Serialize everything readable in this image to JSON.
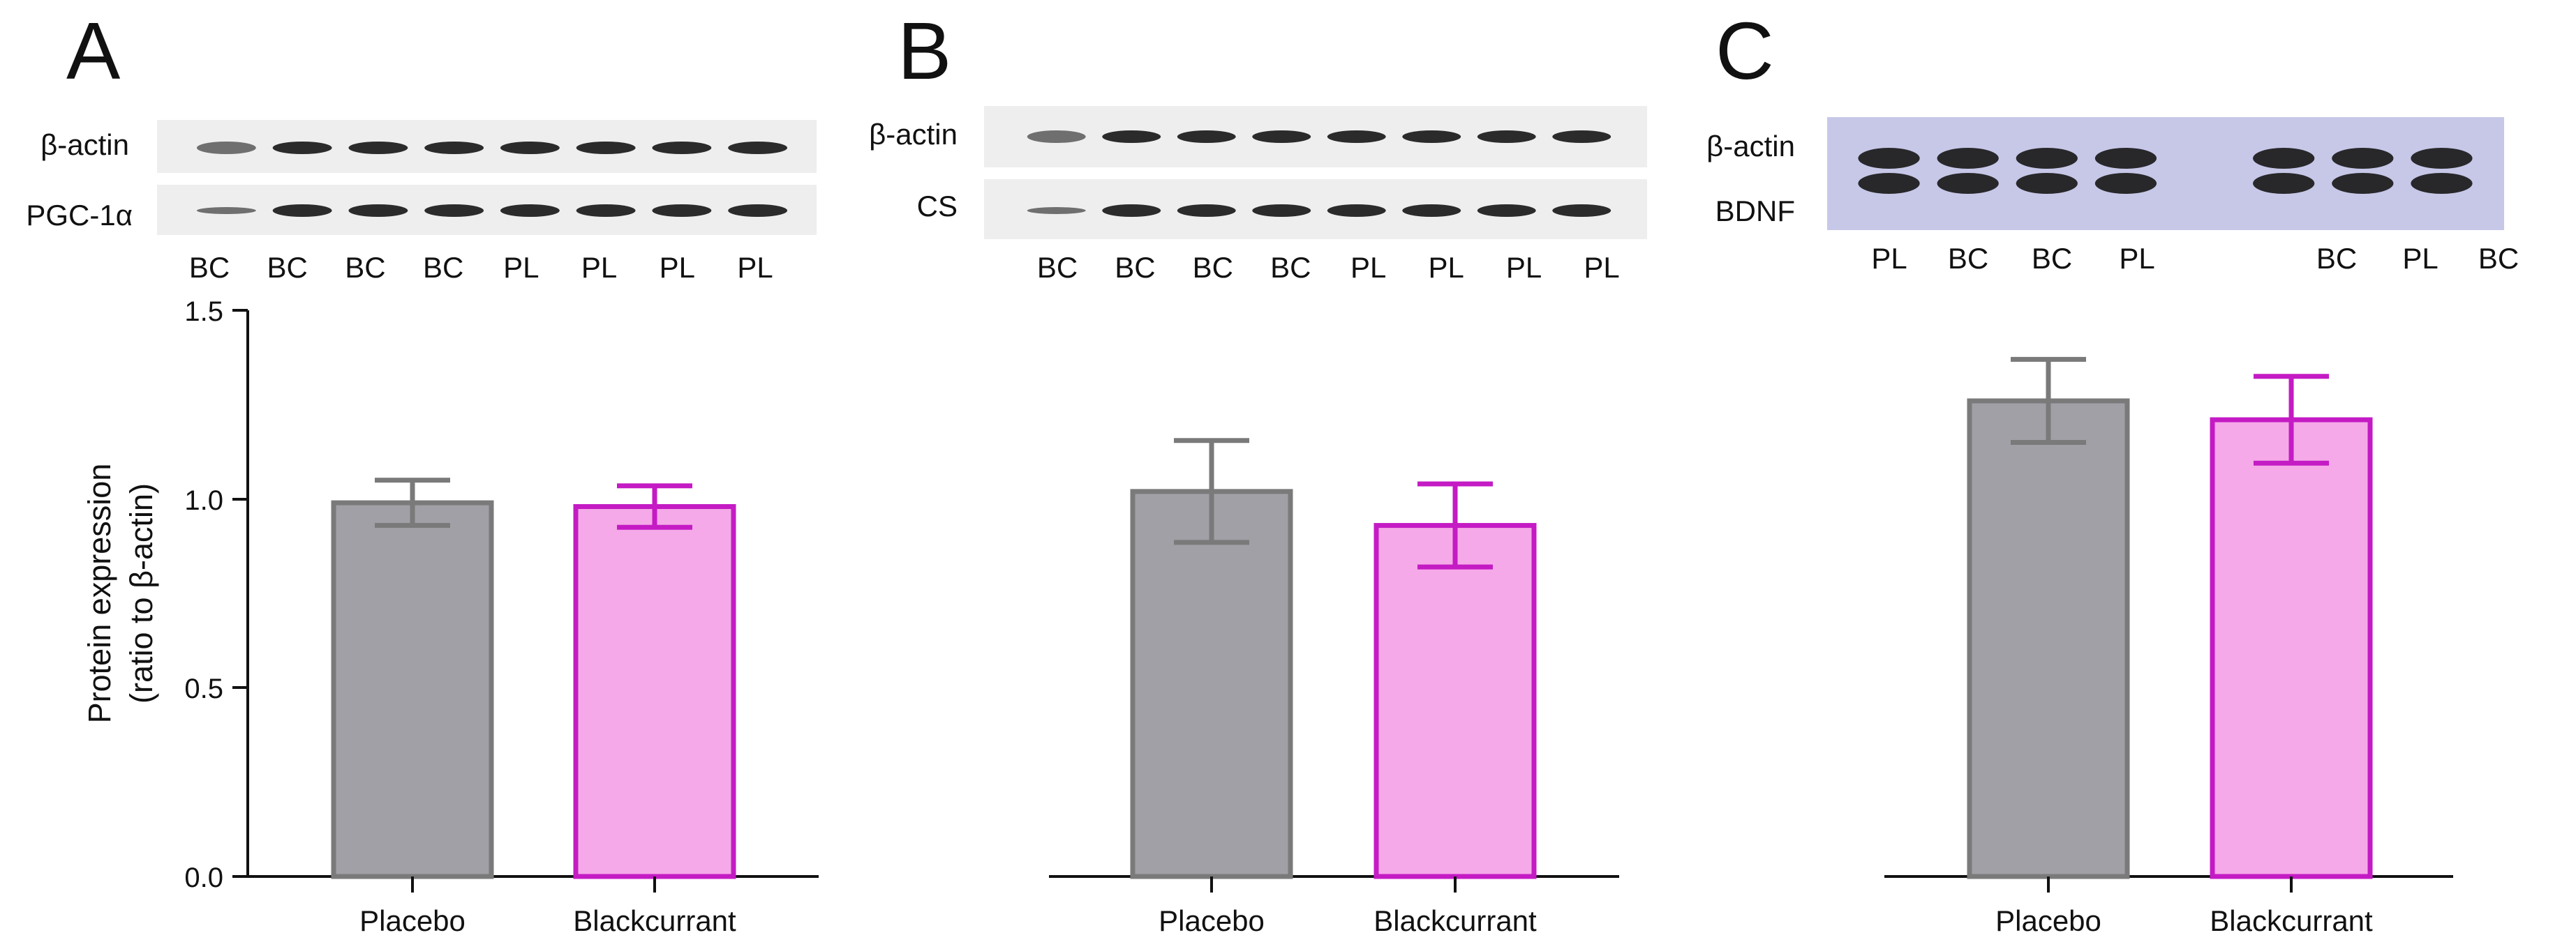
{
  "colors": {
    "placebo_fill": "#a0a0a6",
    "placebo_stroke": "#7a7a7a",
    "blackcurrant_fill": "#f5a9e8",
    "blackcurrant_stroke": "#c41bc4",
    "axis": "#111111",
    "blot_background": "#eeeeee",
    "blot_background_c": "#c7c8e8",
    "band": "#1a1a1a"
  },
  "chart_data": [
    {
      "type": "bar",
      "panel_label": "A",
      "categories": [
        "Placebo",
        "Blackcurrant"
      ],
      "values": [
        0.99,
        0.98
      ],
      "error": [
        0.06,
        0.055
      ],
      "ylabel": "Protein expression",
      "ylabel_sub": "(ratio to β-actin)",
      "ylim": [
        0,
        1.5
      ],
      "yticks": [
        "0.0",
        "0.5",
        "1.0",
        "1.5"
      ],
      "show_yaxis": true,
      "blot": {
        "rows": [
          "β-actin",
          "PGC-1α"
        ],
        "lanes": [
          "BC",
          "BC",
          "BC",
          "BC",
          "PL",
          "PL",
          "PL",
          "PL"
        ]
      }
    },
    {
      "type": "bar",
      "panel_label": "B",
      "categories": [
        "Placebo",
        "Blackcurrant"
      ],
      "values": [
        1.02,
        0.93
      ],
      "error": [
        0.135,
        0.11
      ],
      "ylabel": "",
      "ylim": [
        0,
        1.5
      ],
      "show_yaxis": false,
      "blot": {
        "rows": [
          "β-actin",
          "CS"
        ],
        "lanes": [
          "BC",
          "BC",
          "BC",
          "BC",
          "PL",
          "PL",
          "PL",
          "PL"
        ]
      }
    },
    {
      "type": "bar",
      "panel_label": "C",
      "categories": [
        "Placebo",
        "Blackcurrant"
      ],
      "values": [
        1.26,
        1.21
      ],
      "error": [
        0.11,
        0.115
      ],
      "ylabel": "",
      "ylim": [
        0,
        1.5
      ],
      "show_yaxis": false,
      "blot": {
        "rows": [
          "β-actin",
          "BDNF"
        ],
        "lanes": [
          "PL",
          "BC",
          "BC",
          "PL",
          "BC",
          "PL",
          "BC"
        ]
      }
    }
  ]
}
